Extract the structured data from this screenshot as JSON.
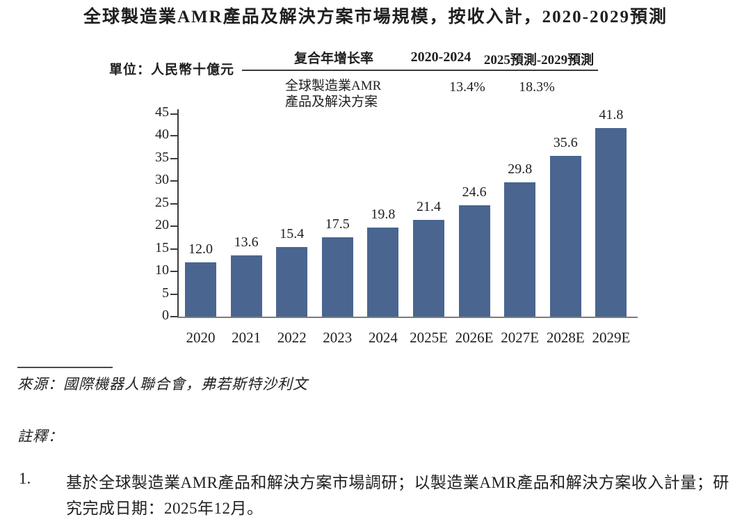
{
  "title": "全球製造業AMR產品及解決方案市場規模，按收入計，2020-2029預測",
  "unit_label": "單位：人民幣十億元",
  "cagr_table": {
    "header": "复合年增长率",
    "periods": [
      "2020-2024",
      "2025預測-2029預測"
    ],
    "row_label_line1": "全球製造業AMR",
    "row_label_line2": "產品及解決方案",
    "values": [
      "13.4%",
      "18.3%"
    ]
  },
  "chart_data": {
    "type": "bar",
    "title": "全球製造業AMR產品及解決方案市場規模，按收入計，2020-2029預測",
    "unit": "人民幣十億元",
    "categories": [
      "2020",
      "2021",
      "2022",
      "2023",
      "2024",
      "2025E",
      "2026E",
      "2027E",
      "2028E",
      "2029E"
    ],
    "values": [
      12.0,
      13.6,
      15.4,
      17.5,
      19.8,
      21.4,
      24.6,
      29.8,
      35.6,
      41.8
    ],
    "value_labels": [
      "12.0",
      "13.6",
      "15.4",
      "17.5",
      "19.8",
      "21.4",
      "24.6",
      "29.8",
      "35.6",
      "41.8"
    ],
    "xlabel": "",
    "ylabel": "人民幣十億元",
    "ylim": [
      0,
      45
    ],
    "yticks": [
      0,
      5,
      10,
      15,
      20,
      25,
      30,
      35,
      40,
      45
    ],
    "grid": false,
    "legend_position": "none",
    "bar_color": "#4a658f",
    "annotations": {
      "cagr_2020_2024": "13.4%",
      "cagr_2025_2029": "18.3%"
    }
  },
  "source": "來源：國際機器人聯合會，弗若斯特沙利文",
  "notes": {
    "label": "註釋：",
    "items": [
      {
        "number": "1.",
        "text": "基於全球製造業AMR產品和解決方案市場調研；以製造業AMR產品和解決方案收入計量；研究完成日期：2025年12月。"
      }
    ]
  },
  "colors": {
    "bar": "#4a658f",
    "text": "#1f1f1f",
    "axis": "#3d3d3d"
  }
}
